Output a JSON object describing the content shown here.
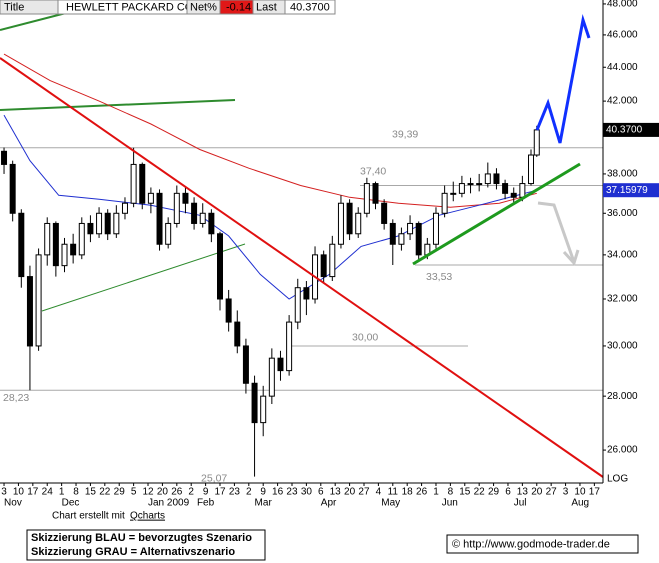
{
  "header": {
    "title_label": "Title",
    "symbol": "HEWLETT PACKARD CO",
    "net_label": "Net%",
    "net_value": "-0.14",
    "last_label": "Last",
    "last_value": "40.3700"
  },
  "chart_data": {
    "type": "candlestick",
    "log_scale": true,
    "scale_label": "LOG",
    "ylim": [
      24.85,
      48.26
    ],
    "yticks": [
      {
        "value": 48,
        "label": "48.000"
      },
      {
        "value": 46,
        "label": "46.000"
      },
      {
        "value": 44,
        "label": "44.000"
      },
      {
        "value": 42,
        "label": "42.000"
      },
      {
        "value": 38,
        "label": "38.000"
      },
      {
        "value": 36,
        "label": "36.000"
      },
      {
        "value": 34,
        "label": "34.000"
      },
      {
        "value": 32,
        "label": "32.000"
      },
      {
        "value": 30,
        "label": "30.000"
      },
      {
        "value": 28,
        "label": "28.000"
      },
      {
        "value": 26,
        "label": "26.000"
      }
    ],
    "xlim": [
      -1.4,
      208
    ],
    "xticks": [
      {
        "value": 0,
        "label": "3"
      },
      {
        "value": 5,
        "label": "10"
      },
      {
        "value": 10,
        "label": "17"
      },
      {
        "value": 15,
        "label": "24"
      },
      {
        "value": 20,
        "label": "1"
      },
      {
        "value": 25,
        "label": "8"
      },
      {
        "value": 30,
        "label": "15"
      },
      {
        "value": 35,
        "label": "22"
      },
      {
        "value": 40,
        "label": "29"
      },
      {
        "value": 45,
        "label": "5"
      },
      {
        "value": 50,
        "label": "12"
      },
      {
        "value": 55,
        "label": "20"
      },
      {
        "value": 60,
        "label": "26"
      },
      {
        "value": 65,
        "label": "2"
      },
      {
        "value": 70,
        "label": "9"
      },
      {
        "value": 75,
        "label": "17"
      },
      {
        "value": 80,
        "label": "23"
      },
      {
        "value": 85,
        "label": "2"
      },
      {
        "value": 90,
        "label": "9"
      },
      {
        "value": 95,
        "label": "16"
      },
      {
        "value": 100,
        "label": "23"
      },
      {
        "value": 105,
        "label": "30"
      },
      {
        "value": 110,
        "label": "6"
      },
      {
        "value": 115,
        "label": "13"
      },
      {
        "value": 120,
        "label": "20"
      },
      {
        "value": 125,
        "label": "27"
      },
      {
        "value": 130,
        "label": "4"
      },
      {
        "value": 135,
        "label": "11"
      },
      {
        "value": 140,
        "label": "18"
      },
      {
        "value": 145,
        "label": "26"
      },
      {
        "value": 150,
        "label": "1"
      },
      {
        "value": 155,
        "label": "8"
      },
      {
        "value": 160,
        "label": "15"
      },
      {
        "value": 165,
        "label": "22"
      },
      {
        "value": 170,
        "label": "29"
      },
      {
        "value": 175,
        "label": "6"
      },
      {
        "value": 180,
        "label": "13"
      },
      {
        "value": 185,
        "label": "20"
      },
      {
        "value": 190,
        "label": "27"
      },
      {
        "value": 195,
        "label": "3"
      },
      {
        "value": 200,
        "label": "10"
      },
      {
        "value": 205,
        "label": "17"
      }
    ],
    "month_labels": [
      {
        "value": 0,
        "label": "Nov"
      },
      {
        "value": 20,
        "label": "Dec"
      },
      {
        "value": 50,
        "label": "Jan 2009"
      },
      {
        "value": 67,
        "label": "Feb"
      },
      {
        "value": 87,
        "label": "Mar"
      },
      {
        "value": 110,
        "label": "Apr"
      },
      {
        "value": 131,
        "label": "May"
      },
      {
        "value": 152,
        "label": "Jun"
      },
      {
        "value": 177,
        "label": "Jul"
      },
      {
        "value": 197,
        "label": "Aug"
      }
    ],
    "x": [
      0,
      3,
      6,
      9,
      12,
      15,
      18,
      21,
      24,
      27,
      30,
      33,
      36,
      39,
      42,
      45,
      48,
      51,
      54,
      57,
      60,
      63,
      66,
      69,
      72,
      75,
      78,
      81,
      84,
      87,
      90,
      93,
      96,
      99,
      102,
      105,
      108,
      111,
      114,
      117,
      120,
      123,
      126,
      129,
      132,
      135,
      138,
      141,
      144,
      147,
      150,
      153,
      156,
      159,
      162,
      165,
      168,
      171,
      174,
      177,
      180,
      183,
      185
    ],
    "open": [
      39.2,
      38.5,
      36.0,
      33.0,
      30.0,
      34.0,
      35.5,
      33.5,
      34.5,
      34.0,
      35.5,
      35.0,
      36.0,
      35.0,
      36.0,
      36.5,
      38.5,
      36.5,
      37.0,
      34.5,
      35.5,
      37.0,
      36.5,
      35.5,
      36.0,
      35.0,
      32.0,
      31.0,
      30.0,
      28.5,
      27.0,
      28.0,
      29.5,
      29.0,
      31.0,
      32.5,
      32.0,
      34.0,
      33.0,
      34.5,
      36.5,
      35.0,
      36.0,
      37.5,
      36.5,
      35.5,
      34.5,
      35.0,
      35.5,
      34.0,
      34.5,
      36.0,
      37.0,
      37.0,
      37.5,
      37.5,
      37.5,
      38.0,
      37.5,
      37.0,
      36.8,
      37.5,
      39.0
    ],
    "high": [
      39.4,
      38.7,
      36.2,
      33.5,
      34.3,
      35.8,
      35.6,
      34.8,
      35.0,
      35.8,
      35.9,
      36.3,
      36.2,
      36.4,
      36.8,
      39.39,
      38.6,
      37.3,
      37.2,
      35.8,
      37.4,
      37.3,
      36.8,
      36.5,
      36.2,
      35.1,
      32.4,
      31.5,
      30.3,
      28.8,
      28.4,
      29.9,
      29.8,
      31.3,
      32.9,
      32.8,
      34.4,
      34.2,
      34.9,
      36.9,
      36.7,
      36.3,
      37.8,
      37.6,
      36.7,
      35.7,
      35.3,
      35.9,
      35.6,
      34.8,
      36.3,
      37.4,
      37.6,
      37.9,
      37.8,
      38.0,
      38.6,
      38.3,
      37.7,
      37.3,
      37.9,
      39.3,
      40.6
    ],
    "low": [
      38.0,
      35.6,
      32.5,
      28.23,
      29.8,
      33.5,
      33.0,
      33.2,
      33.6,
      33.8,
      34.6,
      34.8,
      34.7,
      34.8,
      35.7,
      36.3,
      36.2,
      36.0,
      34.2,
      34.3,
      35.3,
      36.0,
      35.2,
      35.3,
      34.6,
      31.5,
      30.6,
      29.7,
      28.1,
      25.07,
      26.5,
      27.7,
      28.6,
      28.8,
      30.7,
      31.3,
      31.8,
      32.7,
      32.8,
      34.3,
      34.7,
      34.8,
      35.8,
      36.2,
      35.2,
      33.53,
      34.2,
      34.7,
      33.7,
      33.8,
      34.3,
      35.8,
      36.6,
      36.8,
      37.0,
      37.1,
      37.3,
      37.2,
      36.7,
      36.5,
      36.6,
      37.4,
      38.9
    ],
    "close": [
      38.5,
      36.0,
      33.0,
      30.0,
      34.0,
      35.5,
      33.5,
      34.5,
      34.0,
      35.5,
      35.0,
      36.0,
      35.0,
      36.0,
      36.5,
      38.5,
      36.5,
      37.0,
      34.5,
      35.5,
      37.0,
      36.5,
      35.5,
      36.0,
      35.0,
      32.0,
      31.0,
      30.0,
      28.5,
      27.0,
      28.0,
      29.5,
      29.0,
      31.0,
      32.5,
      32.0,
      34.0,
      33.0,
      34.5,
      36.5,
      35.0,
      36.0,
      37.5,
      36.5,
      35.5,
      34.5,
      35.0,
      35.5,
      34.0,
      34.5,
      36.0,
      37.0,
      37.0,
      37.5,
      37.5,
      37.5,
      38.0,
      37.5,
      37.0,
      36.8,
      37.5,
      39.0,
      40.37
    ],
    "series": [
      {
        "color": "#d42020",
        "x": [
          0,
          16,
          33,
          51,
          68,
          85,
          103,
          120,
          137,
          155,
          172,
          185
        ],
        "values": [
          44.8,
          43.2,
          42.0,
          40.7,
          39.3,
          38.3,
          37.4,
          36.8,
          36.5,
          36.3,
          36.5,
          37.0
        ]
      },
      {
        "color": "#1f2fd0",
        "x": [
          0,
          9,
          19,
          33,
          51,
          68,
          78,
          89,
          99,
          113,
          124,
          137,
          151,
          165,
          185
        ],
        "values": [
          41.2,
          38.7,
          36.9,
          36.7,
          36.4,
          35.9,
          34.9,
          33.1,
          32.0,
          33.1,
          34.4,
          34.9,
          35.9,
          36.4,
          37.15979
        ]
      }
    ],
    "price_label": {
      "value": 40.37,
      "label": "40.3700"
    },
    "levels": [
      {
        "value": 39.39,
        "label": "39,39"
      },
      {
        "value": 37.4,
        "label": "37,40"
      },
      {
        "value": 33.53,
        "label": "33,53"
      },
      {
        "value": 30.0,
        "label": "30,00"
      },
      {
        "value": 28.23,
        "label": "28,23"
      },
      {
        "value": 25.07,
        "label": "25,07"
      }
    ]
  },
  "footer": {
    "credit_prefix": "Chart erstellt mit",
    "credit_link": "Qcharts",
    "legend_blue": "Skizzierung BLAU = bevorzugtes Szenario",
    "legend_gray": "Skizzierung GRAU = Alternativszenario",
    "website": "© http://www.godmode-trader.de"
  }
}
